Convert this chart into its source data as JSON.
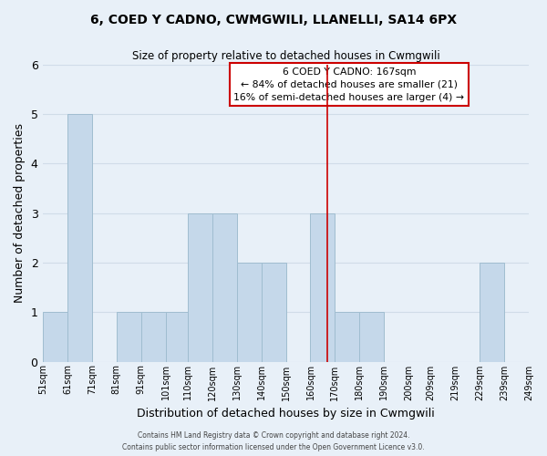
{
  "title": "6, COED Y CADNO, CWMGWILI, LLANELLI, SA14 6PX",
  "subtitle": "Size of property relative to detached houses in Cwmgwili",
  "xlabel": "Distribution of detached houses by size in Cwmgwili",
  "ylabel": "Number of detached properties",
  "bar_color": "#c5d8ea",
  "bar_edge_color": "#a0bdd0",
  "bin_left_edges": [
    51,
    61,
    71,
    81,
    91,
    101,
    110,
    120,
    130,
    140,
    150,
    160,
    170,
    180,
    190,
    200,
    209,
    219,
    229,
    239
  ],
  "bin_widths": [
    10,
    10,
    10,
    10,
    10,
    9,
    10,
    10,
    10,
    10,
    10,
    10,
    10,
    10,
    10,
    9,
    10,
    10,
    10,
    10
  ],
  "counts": [
    1,
    5,
    0,
    1,
    1,
    1,
    3,
    3,
    2,
    2,
    0,
    3,
    1,
    1,
    0,
    0,
    0,
    0,
    2,
    0
  ],
  "x_tick_labels": [
    "51sqm",
    "61sqm",
    "71sqm",
    "81sqm",
    "91sqm",
    "101sqm",
    "110sqm",
    "120sqm",
    "130sqm",
    "140sqm",
    "150sqm",
    "160sqm",
    "170sqm",
    "180sqm",
    "190sqm",
    "200sqm",
    "209sqm",
    "219sqm",
    "229sqm",
    "239sqm",
    "249sqm"
  ],
  "x_tick_positions": [
    51,
    61,
    71,
    81,
    91,
    101,
    110,
    120,
    130,
    140,
    150,
    160,
    170,
    180,
    190,
    200,
    209,
    219,
    229,
    239,
    249
  ],
  "ylim": [
    0,
    6
  ],
  "yticks": [
    0,
    1,
    2,
    3,
    4,
    5,
    6
  ],
  "reference_line_x": 167,
  "reference_line_color": "#cc0000",
  "annotation_title": "6 COED Y CADNO: 167sqm",
  "annotation_line1": "← 84% of detached houses are smaller (21)",
  "annotation_line2": "16% of semi-detached houses are larger (4) →",
  "annotation_box_color": "#ffffff",
  "annotation_box_edge": "#cc0000",
  "footer_line1": "Contains HM Land Registry data © Crown copyright and database right 2024.",
  "footer_line2": "Contains public sector information licensed under the Open Government Licence v3.0.",
  "grid_color": "#d0dce8",
  "background_color": "#e8f0f8"
}
